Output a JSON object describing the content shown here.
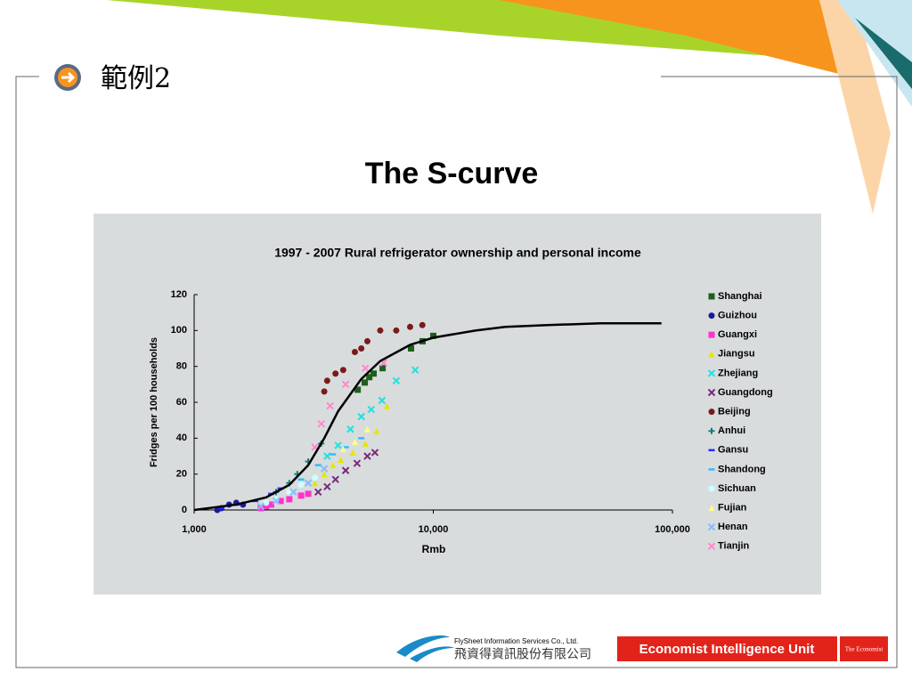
{
  "slide": {
    "heading": "範例2",
    "title": "The S-curve",
    "footer": {
      "company_en": "FlySheet Information Services Co., Ltd.",
      "company_zh": "飛資得資訊股份有限公司",
      "eiu": "Economist Intelligence Unit",
      "economist": "The Economist"
    }
  },
  "chart_data": {
    "type": "scatter",
    "title": "1997 - 2007 Rural refrigerator ownership and personal income",
    "x_label": "Rmb",
    "y_label": "Fridges per 100 households",
    "log_x": true,
    "xlim": [
      1000,
      100000
    ],
    "xticks": [
      {
        "value": 1000,
        "label": "1,000"
      },
      {
        "value": 10000,
        "label": "10,000"
      },
      {
        "value": 100000,
        "label": "100,000"
      }
    ],
    "ylim": [
      0,
      120
    ],
    "yticks": [
      0,
      20,
      40,
      60,
      80,
      100,
      120
    ],
    "series": [
      {
        "name": "Shanghai",
        "color": "#1e5e1e",
        "marker": "square",
        "x": [
          4830,
          5170,
          5400,
          5630,
          6140,
          8070,
          9020,
          10000
        ],
        "values": [
          67,
          71,
          74,
          76,
          79,
          90,
          94,
          97
        ]
      },
      {
        "name": "Guizhou",
        "color": "#1a1a9a",
        "marker": "circle",
        "x": [
          1250,
          1300,
          1400,
          1500,
          1600
        ],
        "values": [
          0,
          1,
          3,
          4,
          3
        ]
      },
      {
        "name": "Guangxi",
        "color": "#ff33cc",
        "marker": "square",
        "x": [
          1900,
          2000,
          2100,
          2300,
          2500,
          2800,
          3000
        ],
        "values": [
          1,
          2,
          3,
          5,
          6,
          8,
          9
        ]
      },
      {
        "name": "Jiangsu",
        "color": "#e6e600",
        "marker": "triangle",
        "x": [
          3200,
          3500,
          3800,
          4100,
          4600,
          5200,
          5800,
          6400
        ],
        "values": [
          15,
          20,
          25,
          28,
          32,
          37,
          44,
          58
        ]
      },
      {
        "name": "Zhejiang",
        "color": "#22e0e0",
        "marker": "x",
        "x": [
          3600,
          4000,
          4500,
          5000,
          5500,
          6100,
          7000,
          8400
        ],
        "values": [
          30,
          36,
          45,
          52,
          56,
          61,
          72,
          78
        ]
      },
      {
        "name": "Guangdong",
        "color": "#7a2a7a",
        "marker": "x",
        "x": [
          3300,
          3600,
          3900,
          4300,
          4800,
          5300,
          5700
        ],
        "values": [
          10,
          13,
          17,
          22,
          26,
          30,
          32
        ]
      },
      {
        "name": "Beijing",
        "color": "#7a1a1a",
        "marker": "circle",
        "x": [
          3500,
          3600,
          3900,
          4200,
          4700,
          5000,
          5300,
          6000,
          7000,
          8000,
          9000
        ],
        "values": [
          66,
          72,
          76,
          78,
          88,
          90,
          94,
          100,
          100,
          102,
          103
        ]
      },
      {
        "name": "Anhui",
        "color": "#1a7a7a",
        "marker": "plus",
        "x": [
          2200,
          2500,
          2700,
          3000,
          3400
        ],
        "values": [
          10,
          15,
          20,
          27,
          37
        ]
      },
      {
        "name": "Gansu",
        "color": "#2a2aff",
        "marker": "dash",
        "x": [
          1300,
          1500,
          1800,
          2100,
          2300
        ],
        "values": [
          1,
          3,
          5,
          9,
          12
        ]
      },
      {
        "name": "Shandong",
        "color": "#33bbff",
        "marker": "dash",
        "x": [
          2800,
          3300,
          3800,
          4300,
          5000
        ],
        "values": [
          17,
          25,
          31,
          35,
          40
        ]
      },
      {
        "name": "Sichuan",
        "color": "#ccffff",
        "marker": "circle",
        "x": [
          2000,
          2200,
          2500,
          2800,
          3200
        ],
        "values": [
          4,
          6,
          10,
          14,
          18
        ]
      },
      {
        "name": "Fujian",
        "color": "#ffff88",
        "marker": "triangle",
        "x": [
          4200,
          4700,
          5300
        ],
        "values": [
          34,
          38,
          45
        ]
      },
      {
        "name": "Henan",
        "color": "#88bbff",
        "marker": "x",
        "x": [
          1900,
          2200,
          2600,
          3000,
          3500
        ],
        "values": [
          2,
          5,
          10,
          15,
          23
        ]
      },
      {
        "name": "Tianjin",
        "color": "#ff88cc",
        "marker": "x",
        "x": [
          3200,
          3400,
          3700,
          4300,
          5200,
          6200
        ],
        "values": [
          35,
          48,
          58,
          70,
          79,
          82
        ]
      }
    ],
    "curve": {
      "color": "#000000",
      "x": [
        1000,
        1500,
        2000,
        2500,
        3000,
        3500,
        4000,
        5000,
        6000,
        8000,
        10000,
        15000,
        20000,
        30000,
        50000,
        90000
      ],
      "values": [
        0,
        3,
        7,
        14,
        25,
        40,
        55,
        73,
        83,
        92,
        96,
        100,
        102,
        103,
        104,
        104
      ]
    }
  }
}
